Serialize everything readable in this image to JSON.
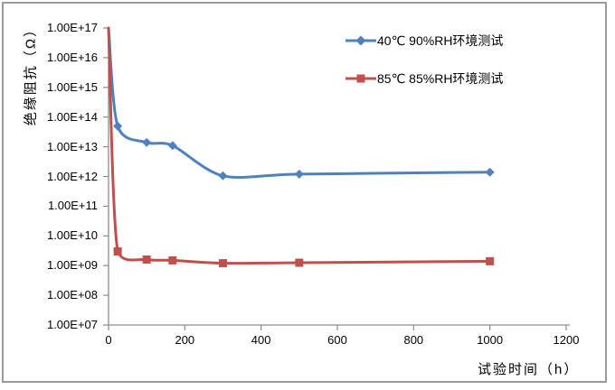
{
  "colors": {
    "series_blue": "#4F81BD",
    "series_red": "#C0504D",
    "axis": "#8c8c8c",
    "frame_border": "#9a9a9a",
    "text": "#000000",
    "background": "#ffffff"
  },
  "chart_data": {
    "type": "line",
    "title": "",
    "xlabel": "试验时间（h）",
    "ylabel": "绝缘阻抗（Ω）",
    "x_scale": "linear",
    "y_scale": "log",
    "xlim": [
      0,
      1200
    ],
    "ylim": [
      10000000.0,
      1e+17
    ],
    "grid": false,
    "legend_position": "top-right-inside",
    "x_ticks": [
      0,
      200,
      400,
      600,
      800,
      1000,
      1200
    ],
    "y_ticks": [
      "1.00E+17",
      "1.00E+16",
      "1.00E+15",
      "1.00E+14",
      "1.00E+13",
      "1.00E+12",
      "1.00E+11",
      "1.00E+10",
      "1.00E+09",
      "1.00E+08",
      "1.00E+07"
    ],
    "series": [
      {
        "name": "40℃ 90%RH环境测试",
        "color": "#4F81BD",
        "marker": "diamond",
        "x": [
          0,
          24,
          100,
          168,
          300,
          500,
          1000
        ],
        "y": [
          1e+17,
          50000000000000.0,
          14000000000000.0,
          11000000000000.0,
          1050000000000.0,
          1200000000000.0,
          1400000000000.0
        ]
      },
      {
        "name": "85℃ 85%RH环境测试",
        "color": "#C0504D",
        "marker": "square",
        "x": [
          0,
          24,
          100,
          168,
          300,
          500,
          1000
        ],
        "y": [
          1e+17,
          3000000000.0,
          1600000000.0,
          1500000000.0,
          1200000000.0,
          1250000000.0,
          1400000000.0
        ]
      }
    ]
  }
}
